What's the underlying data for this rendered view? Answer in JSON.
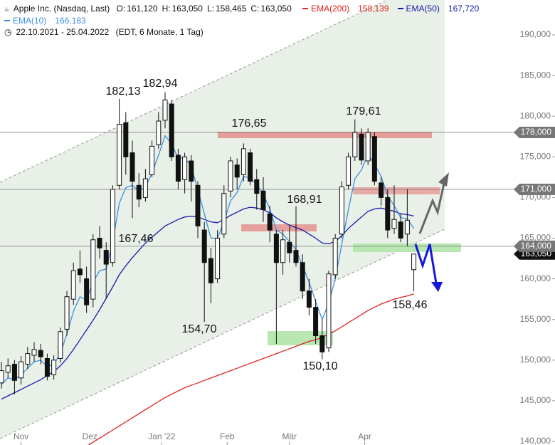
{
  "header": {
    "title": "Apple Inc. (Nasdaq, Last)",
    "ohlc": [
      {
        "key": "O:",
        "value": "161,120"
      },
      {
        "key": "H:",
        "value": "163,050"
      },
      {
        "key": "L:",
        "value": "158,465"
      },
      {
        "key": "C:",
        "value": "163,050"
      }
    ],
    "range": "22.10.2021 - 25.04.2022",
    "info": "(EDT, 6 Monate, 1 Tag)"
  },
  "chart_data": {
    "type": "candlestick",
    "xlim": [
      -0.22,
      84.57
    ],
    "xticks": [
      {
        "value": 3,
        "label": "Nov"
      },
      {
        "value": 13.5,
        "label": "Dez"
      },
      {
        "value": 24.5,
        "label": "Jan '22"
      },
      {
        "value": 34.5,
        "label": "Feb"
      },
      {
        "value": 44,
        "label": "Mär"
      },
      {
        "value": 55.5,
        "label": "Apr"
      }
    ],
    "ylim": [
      139.56,
      194.29
    ],
    "yticks": [
      {
        "value": 190,
        "label": "190,000"
      },
      {
        "value": 185,
        "label": "185,000"
      },
      {
        "value": 180,
        "label": "180,000"
      },
      {
        "value": 175,
        "label": "175,000"
      },
      {
        "value": 170,
        "label": "170,000"
      },
      {
        "value": 165,
        "label": "165,000"
      },
      {
        "value": 160,
        "label": "160,000"
      },
      {
        "value": 155,
        "label": "155,000"
      },
      {
        "value": 150,
        "label": "150,000"
      },
      {
        "value": 145,
        "label": "145,000"
      },
      {
        "value": 140,
        "label": "140,000"
      }
    ],
    "candles": [
      [
        147.2,
        149.8,
        146.5,
        148.7
      ],
      [
        148.5,
        150.2,
        147.8,
        149.3
      ],
      [
        149.5,
        150.0,
        145.8,
        147.5
      ],
      [
        147.8,
        150.5,
        147.0,
        149.8
      ],
      [
        149.5,
        151.6,
        148.9,
        150.8
      ],
      [
        150.6,
        152.2,
        149.8,
        151.3
      ],
      [
        151.2,
        152.0,
        149.5,
        150.4
      ],
      [
        150.2,
        150.8,
        147.5,
        148.0
      ],
      [
        148.2,
        150.6,
        147.6,
        150.0
      ],
      [
        150.2,
        154.0,
        149.7,
        153.5
      ],
      [
        153.8,
        158.5,
        153.0,
        157.8
      ],
      [
        157.5,
        162.0,
        156.8,
        161.0
      ],
      [
        161.2,
        163.5,
        159.5,
        160.5
      ],
      [
        160.0,
        161.5,
        155.8,
        156.8
      ],
      [
        157.5,
        165.5,
        156.5,
        164.8
      ],
      [
        165.0,
        166.5,
        162.5,
        163.8
      ],
      [
        163.5,
        164.5,
        157.6,
        161.8
      ],
      [
        162.0,
        171.5,
        161.5,
        171.0
      ],
      [
        171.5,
        182.13,
        171.0,
        179.0
      ],
      [
        179.2,
        180.5,
        172.8,
        175.0
      ],
      [
        175.5,
        177.0,
        167.46,
        172.0
      ],
      [
        171.5,
        173.0,
        168.8,
        169.8
      ],
      [
        170.0,
        173.5,
        169.5,
        172.3
      ],
      [
        172.8,
        177.0,
        172.5,
        176.3
      ],
      [
        176.5,
        180.5,
        176.0,
        179.4
      ],
      [
        179.5,
        182.94,
        178.5,
        182.0
      ],
      [
        181.5,
        182.0,
        174.5,
        175.0
      ],
      [
        175.2,
        176.0,
        171.0,
        172.0
      ],
      [
        172.2,
        175.5,
        170.5,
        175.0
      ],
      [
        174.5,
        175.2,
        169.5,
        172.0
      ],
      [
        171.5,
        172.0,
        165.0,
        166.5
      ],
      [
        166.0,
        167.0,
        154.7,
        162.0
      ],
      [
        162.5,
        163.8,
        157.0,
        159.5
      ],
      [
        160.0,
        166.0,
        159.5,
        165.0
      ],
      [
        165.5,
        171.5,
        165.0,
        170.5
      ],
      [
        170.8,
        175.0,
        170.0,
        174.5
      ],
      [
        174.0,
        174.8,
        171.0,
        172.5
      ],
      [
        172.8,
        176.65,
        172.0,
        176.0
      ],
      [
        175.5,
        176.0,
        171.5,
        172.0
      ],
      [
        172.2,
        173.5,
        168.5,
        170.5
      ],
      [
        170.8,
        172.5,
        167.0,
        168.5
      ],
      [
        168.0,
        169.0,
        164.5,
        166.0
      ],
      [
        165.5,
        166.0,
        152.0,
        162.0
      ],
      [
        162.0,
        166.0,
        160.5,
        164.8
      ],
      [
        164.5,
        166.5,
        162.0,
        163.2
      ],
      [
        163.5,
        168.91,
        161.5,
        162.0
      ],
      [
        162.0,
        163.0,
        157.5,
        158.5
      ],
      [
        158.5,
        160.0,
        155.5,
        156.5
      ],
      [
        156.5,
        157.5,
        152.0,
        153.0
      ],
      [
        153.0,
        155.0,
        150.1,
        151.0
      ],
      [
        151.5,
        161.0,
        151.0,
        160.6
      ],
      [
        160.5,
        165.5,
        160.0,
        165.0
      ],
      [
        165.5,
        172.0,
        165.0,
        171.3
      ],
      [
        171.5,
        175.5,
        171.0,
        175.0
      ],
      [
        175.0,
        179.61,
        174.5,
        178.0
      ],
      [
        177.8,
        178.5,
        174.0,
        174.6
      ],
      [
        174.5,
        178.5,
        174.0,
        178.0
      ],
      [
        177.5,
        178.0,
        171.5,
        172.0
      ],
      [
        171.8,
        172.5,
        169.0,
        170.0
      ],
      [
        170.0,
        171.0,
        165.0,
        166.0
      ],
      [
        166.2,
        171.5,
        165.5,
        167.3
      ],
      [
        167.0,
        168.0,
        164.5,
        165.0
      ],
      [
        165.5,
        171.0,
        164.0,
        167.2
      ],
      [
        161.12,
        163.05,
        158.465,
        163.05
      ]
    ],
    "series": [
      {
        "name": "EMA(200)",
        "color": "#e0201b",
        "last_label": "158,139",
        "values": [
          null,
          null,
          null,
          null,
          null,
          null,
          null,
          null,
          null,
          null,
          null,
          null,
          null,
          139.4,
          139.9,
          140.4,
          140.9,
          141.4,
          141.9,
          142.4,
          142.9,
          143.4,
          143.9,
          144.4,
          144.9,
          145.4,
          145.8,
          146.2,
          146.6,
          146.9,
          147.2,
          147.5,
          147.8,
          148.1,
          148.4,
          148.7,
          149.0,
          149.3,
          149.6,
          149.9,
          150.2,
          150.5,
          150.8,
          151.1,
          151.4,
          151.7,
          152.0,
          152.3,
          152.5,
          152.8,
          153.2,
          153.6,
          154.1,
          154.6,
          155.1,
          155.6,
          156.1,
          156.5,
          156.9,
          157.2,
          157.5,
          157.7,
          157.9,
          158.139
        ]
      },
      {
        "name": "EMA(50)",
        "color": "#1a1aa8",
        "last_label": "167,720",
        "values": [
          145.2,
          145.6,
          146.0,
          146.4,
          146.8,
          147.2,
          147.6,
          148.1,
          148.6,
          149.3,
          150.2,
          151.3,
          152.5,
          153.7,
          154.9,
          156.2,
          157.6,
          159.0,
          160.5,
          161.6,
          162.6,
          163.5,
          164.4,
          165.1,
          165.8,
          166.5,
          166.9,
          167.3,
          167.6,
          167.7,
          167.6,
          167.3,
          167.0,
          166.9,
          167.3,
          167.8,
          168.2,
          168.6,
          168.8,
          168.7,
          168.5,
          168.1,
          167.5,
          167.0,
          166.6,
          166.3,
          166.0,
          165.5,
          165.0,
          164.4,
          164.3,
          164.6,
          165.3,
          166.2,
          166.9,
          167.6,
          168.3,
          168.6,
          168.7,
          168.5,
          168.3,
          168.0,
          167.9,
          167.72
        ]
      },
      {
        "name": "EMA(10)",
        "color": "#3b8fe0",
        "last_label": "166,183",
        "values": [
          147.0,
          147.8,
          147.6,
          148.2,
          149.0,
          149.8,
          150.0,
          149.2,
          149.5,
          150.8,
          153.2,
          156.0,
          157.8,
          157.4,
          159.6,
          161.0,
          161.2,
          164.5,
          169.3,
          171.2,
          171.5,
          170.8,
          171.3,
          173.0,
          175.2,
          177.6,
          176.6,
          174.8,
          174.9,
          173.8,
          171.0,
          168.0,
          165.0,
          165.0,
          167.0,
          169.6,
          170.6,
          172.6,
          172.4,
          171.6,
          170.4,
          168.6,
          166.0,
          165.5,
          164.6,
          163.6,
          161.6,
          159.6,
          157.2,
          155.0,
          157.0,
          160.0,
          164.3,
          168.5,
          172.3,
          173.4,
          175.3,
          174.1,
          172.6,
          170.2,
          169.0,
          167.5,
          167.4,
          166.183
        ]
      }
    ],
    "levels": [
      {
        "value": 178,
        "label": "178,000"
      },
      {
        "value": 171,
        "label": "171,000"
      },
      {
        "value": 164,
        "label": "164,000"
      }
    ],
    "last_price": {
      "value": 163.05,
      "label": "163,050"
    },
    "annotations": [
      "182,13",
      "182,94",
      "176,65",
      "179,61",
      "168,91",
      "167,46",
      "154,70",
      "150,10",
      "158,46"
    ]
  }
}
